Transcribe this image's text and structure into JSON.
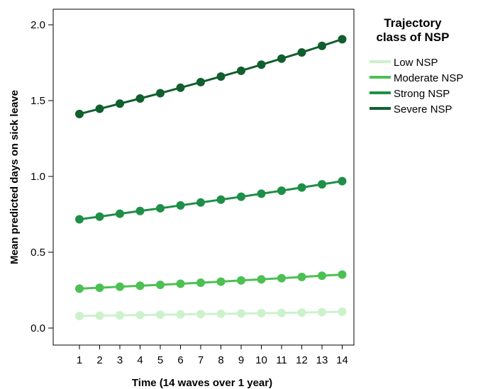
{
  "chart_data": {
    "type": "line",
    "xlabel": "Time (14 waves over 1 year)",
    "ylabel": "Mean predicted days on sick leave",
    "categories": [
      "1",
      "2",
      "3",
      "4",
      "5",
      "6",
      "7",
      "8",
      "9",
      "10",
      "11",
      "12",
      "13",
      "14"
    ],
    "ylim": [
      -0.05,
      2.1
    ],
    "yticks": [
      "0.0",
      "0.5",
      "1.0",
      "1.5",
      "2.0"
    ],
    "grid": false,
    "legend": {
      "title_line1": "Trajectory",
      "title_line2": "class of NSP",
      "placement": "right"
    },
    "series": [
      {
        "name": "Low NSP",
        "color": "#ccf2cc",
        "values": [
          0.08,
          0.082,
          0.084,
          0.086,
          0.088,
          0.09,
          0.092,
          0.094,
          0.096,
          0.098,
          0.1,
          0.102,
          0.105,
          0.108
        ]
      },
      {
        "name": "Moderate NSP",
        "color": "#4cc053",
        "values": [
          0.26,
          0.266,
          0.273,
          0.279,
          0.285,
          0.292,
          0.299,
          0.306,
          0.314,
          0.321,
          0.329,
          0.337,
          0.345,
          0.353
        ]
      },
      {
        "name": "Strong NSP",
        "color": "#1e8f47",
        "values": [
          0.717,
          0.735,
          0.754,
          0.772,
          0.79,
          0.809,
          0.828,
          0.847,
          0.866,
          0.886,
          0.906,
          0.927,
          0.948,
          0.969
        ]
      },
      {
        "name": "Severe NSP",
        "color": "#115e2e",
        "values": [
          1.412,
          1.446,
          1.48,
          1.514,
          1.549,
          1.585,
          1.622,
          1.659,
          1.697,
          1.737,
          1.777,
          1.818,
          1.861,
          1.905
        ]
      }
    ]
  }
}
